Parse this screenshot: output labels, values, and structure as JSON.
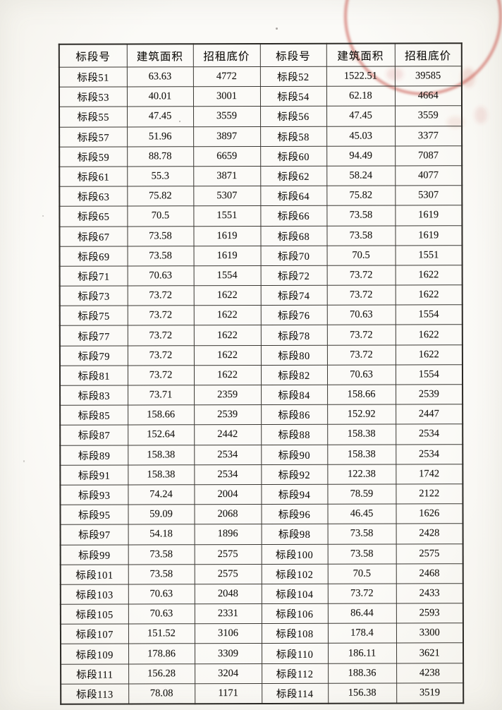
{
  "document": {
    "type": "scanned-table-page",
    "language": "zh-CN"
  },
  "colors": {
    "paper": "#fbfaf7",
    "ink": "#181613",
    "table_border": "#3b3833",
    "stamp_red": "#c4493f"
  },
  "stamp": {
    "shape": "circular-official-seal",
    "position": "top-right, partially cut off by page edge",
    "legible_text": ""
  },
  "table": {
    "columns": [
      "标段号",
      "建筑面积",
      "招租底价",
      "标段号",
      "建筑面积",
      "招租底价"
    ],
    "rows": [
      [
        "标段51",
        "63.63",
        "4772",
        "标段52",
        "1522.51",
        "39585"
      ],
      [
        "标段53",
        "40.01",
        "3001",
        "标段54",
        "62.18",
        "4664"
      ],
      [
        "标段55",
        "47.45",
        "3559",
        "标段56",
        "47.45",
        "3559"
      ],
      [
        "标段57",
        "51.96",
        "3897",
        "标段58",
        "45.03",
        "3377"
      ],
      [
        "标段59",
        "88.78",
        "6659",
        "标段60",
        "94.49",
        "7087"
      ],
      [
        "标段61",
        "55.3",
        "3871",
        "标段62",
        "58.24",
        "4077"
      ],
      [
        "标段63",
        "75.82",
        "5307",
        "标段64",
        "75.82",
        "5307"
      ],
      [
        "标段65",
        "70.5",
        "1551",
        "标段66",
        "73.58",
        "1619"
      ],
      [
        "标段67",
        "73.58",
        "1619",
        "标段68",
        "73.58",
        "1619"
      ],
      [
        "标段69",
        "73.58",
        "1619",
        "标段70",
        "70.5",
        "1551"
      ],
      [
        "标段71",
        "70.63",
        "1554",
        "标段72",
        "73.72",
        "1622"
      ],
      [
        "标段73",
        "73.72",
        "1622",
        "标段74",
        "73.72",
        "1622"
      ],
      [
        "标段75",
        "73.72",
        "1622",
        "标段76",
        "70.63",
        "1554"
      ],
      [
        "标段77",
        "73.72",
        "1622",
        "标段78",
        "73.72",
        "1622"
      ],
      [
        "标段79",
        "73.72",
        "1622",
        "标段80",
        "73.72",
        "1622"
      ],
      [
        "标段81",
        "73.72",
        "1622",
        "标段82",
        "70.63",
        "1554"
      ],
      [
        "标段83",
        "73.71",
        "2359",
        "标段84",
        "158.66",
        "2539"
      ],
      [
        "标段85",
        "158.66",
        "2539",
        "标段86",
        "152.92",
        "2447"
      ],
      [
        "标段87",
        "152.64",
        "2442",
        "标段88",
        "158.38",
        "2534"
      ],
      [
        "标段89",
        "158.38",
        "2534",
        "标段90",
        "158.38",
        "2534"
      ],
      [
        "标段91",
        "158.38",
        "2534",
        "标段92",
        "122.38",
        "1742"
      ],
      [
        "标段93",
        "74.24",
        "2004",
        "标段94",
        "78.59",
        "2122"
      ],
      [
        "标段95",
        "59.09",
        "2068",
        "标段96",
        "46.45",
        "1626"
      ],
      [
        "标段97",
        "54.18",
        "1896",
        "标段98",
        "73.58",
        "2428"
      ],
      [
        "标段99",
        "73.58",
        "2575",
        "标段100",
        "73.58",
        "2575"
      ],
      [
        "标段101",
        "73.58",
        "2575",
        "标段102",
        "70.5",
        "2468"
      ],
      [
        "标段103",
        "70.63",
        "2048",
        "标段104",
        "73.72",
        "2433"
      ],
      [
        "标段105",
        "70.63",
        "2331",
        "标段106",
        "86.44",
        "2593"
      ],
      [
        "标段107",
        "151.52",
        "3106",
        "标段108",
        "178.4",
        "3300"
      ],
      [
        "标段109",
        "178.86",
        "3309",
        "标段110",
        "186.11",
        "3621"
      ],
      [
        "标段111",
        "156.28",
        "3204",
        "标段112",
        "188.36",
        "4238"
      ],
      [
        "标段113",
        "78.08",
        "1171",
        "标段114",
        "156.38",
        "3519"
      ]
    ]
  }
}
